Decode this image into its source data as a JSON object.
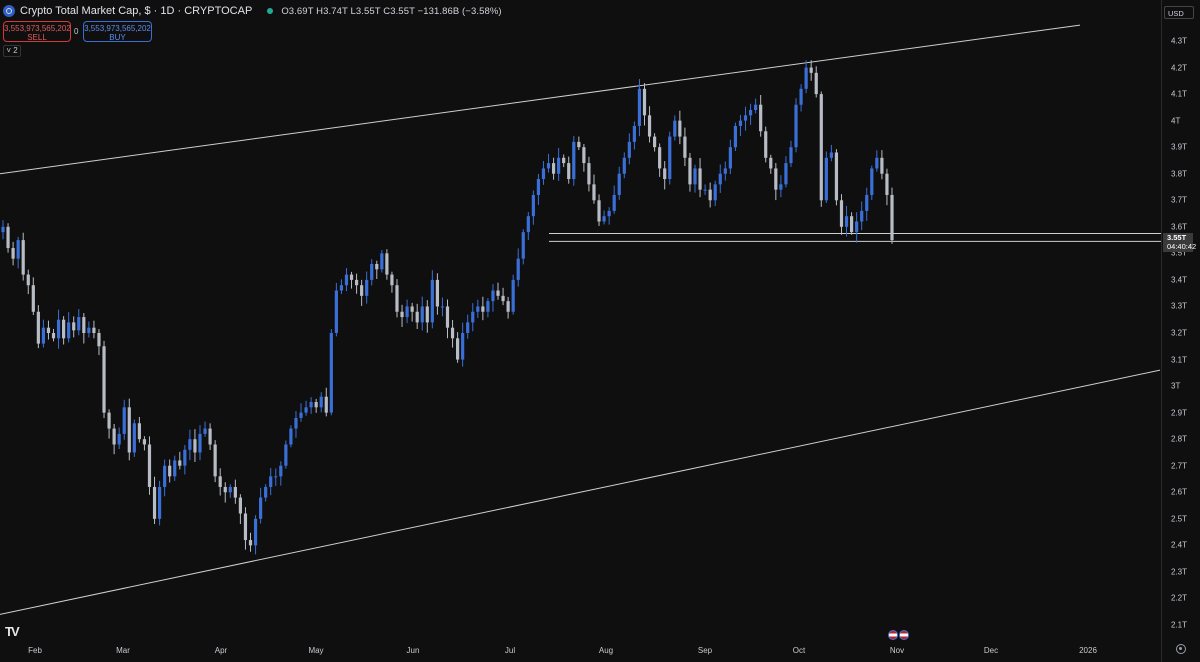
{
  "header": {
    "title": "Crypto Total Market Cap, $ · 1D · CRYPTOCAP",
    "ohlc": "O3.69T  H3.74T  L3.55T  C3.55T  −131.86B (−3.58%)",
    "sell_price": "3,553,973,565,202",
    "sell_label": "SELL",
    "buy_price": "3,553,973,565,202",
    "buy_label": "BUY",
    "spread": "0",
    "indicator_count": "2"
  },
  "toolbar": {
    "currency": "USD",
    "logo": "TV"
  },
  "price_tag": {
    "value": "3.55T",
    "countdown": "04:40:42"
  },
  "colors": {
    "bull": "#3b6fd8",
    "bear": "#b8bcc4",
    "background": "#0f0f0f",
    "line": "#cfcfcf"
  },
  "chart_data": {
    "type": "candlestick",
    "symbol": "CRYPTOCAP:TOTAL",
    "timeframe": "1D",
    "ylim": [
      2.05,
      4.32
    ],
    "y_ticks": [
      "4.3T",
      "4.2T",
      "4.1T",
      "4T",
      "3.9T",
      "3.8T",
      "3.7T",
      "3.6T",
      "3.5T",
      "3.4T",
      "3.3T",
      "3.2T",
      "3.1T",
      "3T",
      "2.9T",
      "2.8T",
      "2.7T",
      "2.6T",
      "2.5T",
      "2.4T",
      "2.3T",
      "2.2T",
      "2.1T"
    ],
    "x_ticks": [
      "Feb",
      "Mar",
      "Apr",
      "May",
      "Jun",
      "Jul",
      "Aug",
      "Sep",
      "Oct",
      "Nov",
      "Dec",
      "2026"
    ],
    "closes": [
      3.6,
      3.52,
      3.48,
      3.55,
      3.42,
      3.38,
      3.28,
      3.16,
      3.22,
      3.2,
      3.18,
      3.25,
      3.18,
      3.24,
      3.21,
      3.26,
      3.2,
      3.22,
      3.2,
      3.15,
      2.9,
      2.84,
      2.78,
      2.82,
      2.92,
      2.75,
      2.86,
      2.8,
      2.78,
      2.62,
      2.5,
      2.62,
      2.7,
      2.66,
      2.72,
      2.7,
      2.76,
      2.8,
      2.75,
      2.82,
      2.84,
      2.78,
      2.66,
      2.62,
      2.6,
      2.62,
      2.58,
      2.52,
      2.42,
      2.4,
      2.5,
      2.58,
      2.62,
      2.66,
      2.66,
      2.7,
      2.78,
      2.84,
      2.88,
      2.9,
      2.92,
      2.94,
      2.92,
      2.96,
      2.9,
      3.2,
      3.36,
      3.38,
      3.42,
      3.4,
      3.38,
      3.34,
      3.4,
      3.46,
      3.44,
      3.5,
      3.42,
      3.38,
      3.28,
      3.26,
      3.3,
      3.28,
      3.24,
      3.3,
      3.24,
      3.4,
      3.3,
      3.3,
      3.22,
      3.18,
      3.1,
      3.2,
      3.24,
      3.28,
      3.3,
      3.28,
      3.32,
      3.36,
      3.34,
      3.32,
      3.28,
      3.4,
      3.48,
      3.58,
      3.64,
      3.72,
      3.78,
      3.82,
      3.84,
      3.8,
      3.86,
      3.84,
      3.78,
      3.92,
      3.9,
      3.84,
      3.76,
      3.7,
      3.62,
      3.64,
      3.66,
      3.72,
      3.8,
      3.86,
      3.92,
      3.98,
      4.12,
      4.02,
      3.94,
      3.9,
      3.82,
      3.78,
      3.94,
      4,
      3.94,
      3.86,
      3.76,
      3.82,
      3.74,
      3.74,
      3.7,
      3.76,
      3.8,
      3.82,
      3.9,
      3.98,
      4,
      4.02,
      4.04,
      4.06,
      3.96,
      3.86,
      3.82,
      3.74,
      3.76,
      3.84,
      3.9,
      4.06,
      4.12,
      4.2,
      4.18,
      4.1,
      3.7,
      3.86,
      3.88,
      3.7,
      3.6,
      3.64,
      3.58,
      3.62,
      3.66,
      3.72,
      3.82,
      3.86,
      3.8,
      3.72,
      3.55
    ],
    "channel_upper": [
      [
        0,
        3.8
      ],
      [
        1080,
        4.36
      ]
    ],
    "channel_lower": [
      [
        0,
        2.14
      ],
      [
        1160,
        3.06
      ]
    ],
    "support_lines": [
      3.575,
      3.545
    ]
  }
}
